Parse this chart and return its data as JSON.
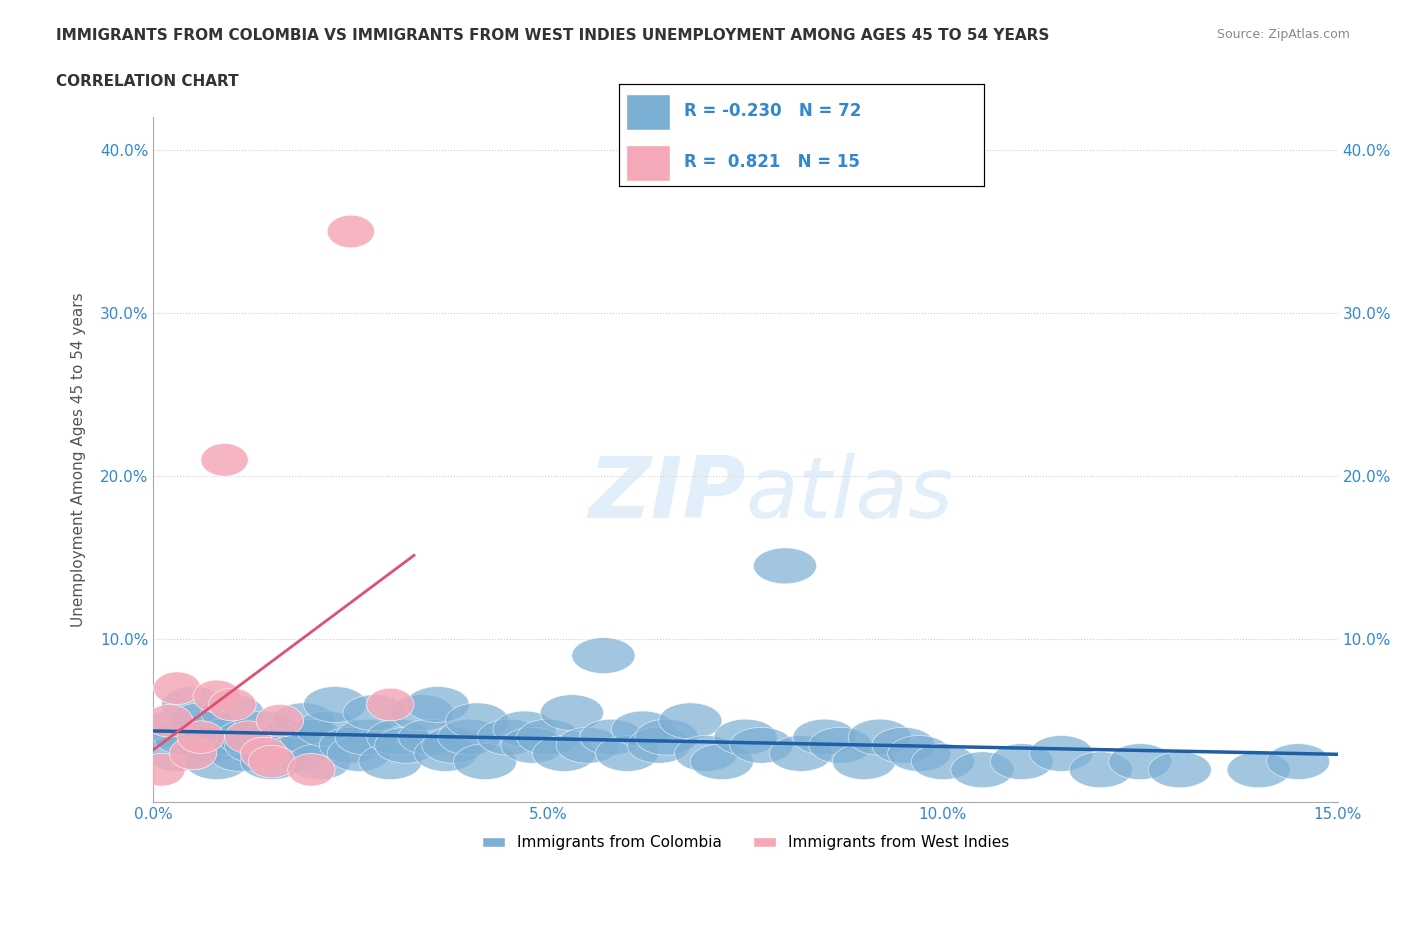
{
  "title_line1": "IMMIGRANTS FROM COLOMBIA VS IMMIGRANTS FROM WEST INDIES UNEMPLOYMENT AMONG AGES 45 TO 54 YEARS",
  "title_line2": "CORRELATION CHART",
  "source": "Source: ZipAtlas.com",
  "ylabel": "Unemployment Among Ages 45 to 54 years",
  "xlim": [
    0.0,
    0.15
  ],
  "ylim": [
    0.0,
    0.42
  ],
  "xticks": [
    0.0,
    0.025,
    0.05,
    0.075,
    0.1,
    0.125,
    0.15
  ],
  "xticklabels": [
    "0.0%",
    "",
    "5.0%",
    "",
    "10.0%",
    "",
    "15.0%"
  ],
  "yticks": [
    0.0,
    0.1,
    0.2,
    0.3,
    0.4
  ],
  "yticklabels": [
    "",
    "10.0%",
    "20.0%",
    "30.0%",
    "40.0%"
  ],
  "colombia_color": "#7bafd4",
  "west_indies_color": "#f4a8b8",
  "colombia_line_color": "#1f5fa6",
  "west_indies_line_color": "#e05070",
  "colombia_R": -0.23,
  "colombia_N": 72,
  "west_indies_R": 0.821,
  "west_indies_N": 15,
  "colombia_x": [
    0.002,
    0.003,
    0.004,
    0.005,
    0.006,
    0.007,
    0.008,
    0.009,
    0.01,
    0.011,
    0.012,
    0.013,
    0.014,
    0.015,
    0.016,
    0.017,
    0.018,
    0.019,
    0.02,
    0.021,
    0.022,
    0.023,
    0.025,
    0.026,
    0.027,
    0.028,
    0.03,
    0.031,
    0.032,
    0.034,
    0.035,
    0.036,
    0.037,
    0.038,
    0.04,
    0.041,
    0.042,
    0.045,
    0.047,
    0.048,
    0.05,
    0.052,
    0.053,
    0.055,
    0.057,
    0.058,
    0.06,
    0.062,
    0.064,
    0.065,
    0.068,
    0.07,
    0.072,
    0.075,
    0.077,
    0.08,
    0.082,
    0.085,
    0.087,
    0.09,
    0.092,
    0.095,
    0.097,
    0.1,
    0.105,
    0.11,
    0.115,
    0.12,
    0.125,
    0.13,
    0.14,
    0.145
  ],
  "colombia_y": [
    0.045,
    0.03,
    0.04,
    0.06,
    0.05,
    0.035,
    0.025,
    0.04,
    0.055,
    0.03,
    0.04,
    0.035,
    0.045,
    0.025,
    0.035,
    0.04,
    0.03,
    0.05,
    0.04,
    0.025,
    0.045,
    0.06,
    0.035,
    0.03,
    0.04,
    0.055,
    0.025,
    0.04,
    0.035,
    0.055,
    0.04,
    0.06,
    0.03,
    0.035,
    0.04,
    0.05,
    0.025,
    0.04,
    0.045,
    0.035,
    0.04,
    0.03,
    0.055,
    0.035,
    0.09,
    0.04,
    0.03,
    0.045,
    0.035,
    0.04,
    0.05,
    0.03,
    0.025,
    0.04,
    0.035,
    0.145,
    0.03,
    0.04,
    0.035,
    0.025,
    0.04,
    0.035,
    0.03,
    0.025,
    0.02,
    0.025,
    0.03,
    0.02,
    0.025,
    0.02,
    0.02,
    0.025
  ],
  "west_indies_x": [
    0.001,
    0.002,
    0.003,
    0.005,
    0.006,
    0.008,
    0.009,
    0.01,
    0.012,
    0.014,
    0.015,
    0.016,
    0.02,
    0.025,
    0.03
  ],
  "west_indies_y": [
    0.02,
    0.05,
    0.07,
    0.03,
    0.04,
    0.065,
    0.21,
    0.06,
    0.04,
    0.03,
    0.025,
    0.05,
    0.02,
    0.35,
    0.06
  ]
}
